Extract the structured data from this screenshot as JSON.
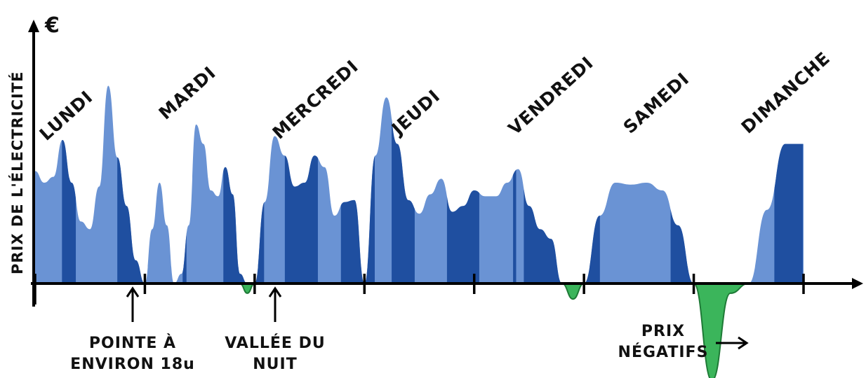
{
  "chart_data": {
    "type": "area",
    "ylabel": "PRIX DE L'ÉLECTRICITÉ",
    "y_unit": "€",
    "days": [
      "LUNDI",
      "MARDI",
      "MERCREDI",
      "JEUDI",
      "VENDREDI",
      "SAMEDI",
      "DIMANCHE"
    ],
    "series": [
      {
        "values_by_day": [
          [
            0.58,
            0.52,
            0.55,
            0.74,
            0.52,
            0.32,
            0.28,
            0.5,
            1.02,
            0.65,
            0.4,
            0.12,
            0.0
          ],
          [
            0.12,
            0.28,
            0.52,
            0.3,
            0.0,
            0.05,
            0.3,
            0.82,
            0.72,
            0.48,
            0.45,
            0.6,
            0.46,
            0.05,
            -0.05,
            0.0
          ],
          [
            0.0,
            0.42,
            0.76,
            0.66,
            0.5,
            0.52,
            0.66,
            0.6,
            0.35,
            0.42,
            0.43,
            0.0
          ],
          [
            0.3,
            0.66,
            0.96,
            0.72,
            0.43,
            0.36,
            0.46,
            0.54,
            0.37,
            0.4,
            0.48
          ],
          [
            0.48,
            0.45,
            0.45,
            0.52,
            0.59,
            0.4,
            0.28,
            0.23,
            0.0,
            -0.08,
            0.0
          ],
          [
            0.0,
            0.35,
            0.52,
            0.51,
            0.52,
            0.48,
            0.3,
            0.0
          ],
          [
            -0.1,
            -0.5,
            -0.05,
            0.0,
            0.38,
            0.72,
            0.72
          ]
        ]
      }
    ],
    "colors": {
      "light": "#6a93d4",
      "dark": "#1f4fa0",
      "negative": "#3bb55b",
      "negative_edge": "#1e7a36"
    },
    "annotations": [
      {
        "text": [
          "POINTE À",
          "ENVIRON 18u"
        ],
        "day": 0,
        "day_fraction": 0.87
      },
      {
        "text": [
          "VALLÉE DU",
          "NUIT"
        ],
        "day": 2,
        "day_fraction": 0.19
      },
      {
        "text": [
          "PRIX",
          "NÉGATIFS"
        ],
        "day": 6,
        "day_fraction": 0.15
      }
    ]
  }
}
